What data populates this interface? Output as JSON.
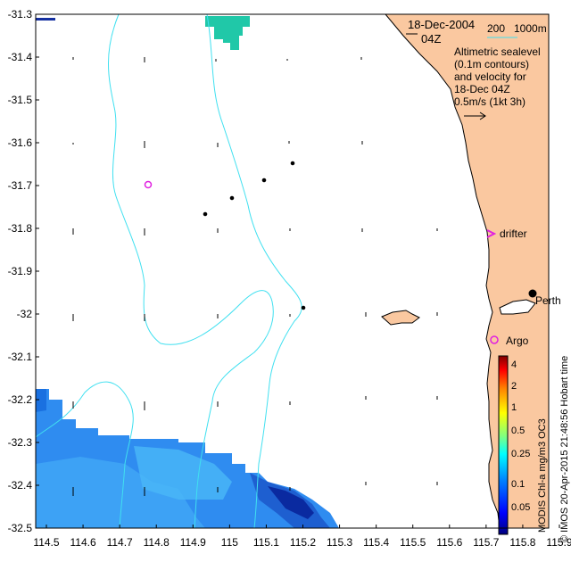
{
  "map": {
    "date_title": "18-Dec-2004",
    "time_title": "04Z",
    "scale_bar": {
      "label": "200",
      "unit_label": "1000m"
    },
    "legend_lines": [
      "Altimetric sealevel",
      "(0.1m contours)",
      "and velocity for",
      "18-Dec 04Z",
      "0.5m/s (1kt 3h)"
    ],
    "drifter_label": "drifter",
    "argo_label": "Argo",
    "city_label": "Perth",
    "credit_label": "© IMOS 20-Apr-2015 21:48:56 Hobart time",
    "colorbar_title": "MODIS Chl-a mg/m3 OC3",
    "colorbar_ticks": [
      "4",
      "2",
      "1",
      "0.5",
      "0.25",
      "0.1",
      "0.05"
    ],
    "lon_ticks": [
      "114.5",
      "114.6",
      "114.7",
      "114.8",
      "114.9",
      "115",
      "115.1",
      "115.2",
      "115.3",
      "115.4",
      "115.5",
      "115.6",
      "115.7",
      "115.8",
      "115.9"
    ],
    "lat_ticks": [
      "-31.3",
      "-31.4",
      "-31.5",
      "-31.6",
      "-31.7",
      "-31.8",
      "-31.9",
      "-32",
      "-32.1",
      "-32.2",
      "-32.3",
      "-32.4",
      "-32.5"
    ],
    "colors": {
      "land": "#FAC8A0",
      "contour": "#40E0F0",
      "marker": "#E020E0",
      "chl_high": "#0030A0",
      "chl_mid": "#2090F0",
      "chl_low": "#40B0F8"
    }
  }
}
